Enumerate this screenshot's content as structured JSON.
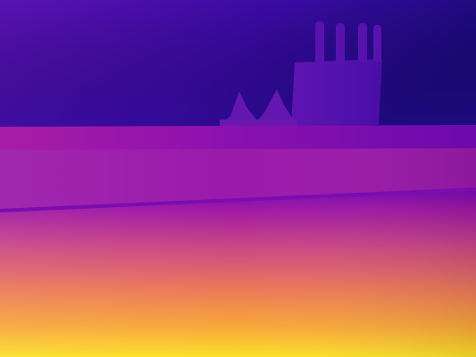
{
  "image": {
    "kind": "depth-map",
    "colormap": "plasma",
    "palette": {
      "far": "#1a0a7a",
      "wall": "#3a0aa0",
      "object": "#5a12aa",
      "counter_edge": "#8a10b0",
      "counter_mid": "#9e1aa8",
      "floor_mid": "#d4567a",
      "floor_near": "#f4963c",
      "nearest": "#fbe02a"
    },
    "objects": [
      {
        "name": "knife-block"
      },
      {
        "name": "knife-handle"
      },
      {
        "name": "kettle-lid-left"
      },
      {
        "name": "kettle-lid-right"
      }
    ]
  }
}
